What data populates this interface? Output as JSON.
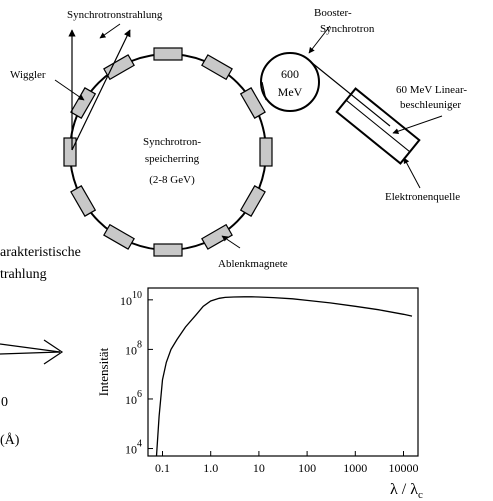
{
  "labels": {
    "synchrotronstrahlung": "Synchrotronstrahlung",
    "wiggler": "Wiggler",
    "booster_line1": "Booster-",
    "booster_line2": "Synchrotron",
    "booster_energy_line1": "600",
    "booster_energy_line2": "MeV",
    "linac_line1": "60 MeV Linear-",
    "linac_line2": "beschleuniger",
    "ring_line1": "Synchrotron-",
    "ring_line2": "speicherring",
    "ring_line3": "(2-8 GeV)",
    "elektronenquelle": "Elektronenquelle",
    "ablenkmagnete": "Ablenkmagnete",
    "charakteristische_line1": "arakteristische",
    "charakteristische_line2": "trahlung",
    "left_number": "0",
    "left_unit": "(Å)"
  },
  "chart_data": {
    "type": "line",
    "title": "",
    "xlabel_main": "λ / λ",
    "xlabel_sub": "c",
    "ylabel": "Intensität",
    "x_scale": "log",
    "y_scale": "log",
    "xlim": [
      0.05,
      20000
    ],
    "ylim": [
      5000,
      30000000000
    ],
    "x_ticks": [
      {
        "value": 0.1,
        "label": "0.1"
      },
      {
        "value": 1,
        "label": "1.0"
      },
      {
        "value": 10,
        "label": "10"
      },
      {
        "value": 100,
        "label": "100"
      },
      {
        "value": 1000,
        "label": "1000"
      },
      {
        "value": 10000,
        "label": "10000"
      }
    ],
    "y_ticks": [
      {
        "value": 10000,
        "base": "10",
        "exp": "4"
      },
      {
        "value": 1000000,
        "base": "10",
        "exp": "6"
      },
      {
        "value": 100000000,
        "base": "10",
        "exp": "8"
      },
      {
        "value": 10000000000,
        "base": "10",
        "exp": "10"
      }
    ],
    "grid": false,
    "series": [
      {
        "x": [
          0.075,
          0.085,
          0.1,
          0.12,
          0.15,
          0.2,
          0.3,
          0.5,
          0.7,
          1.0,
          1.5,
          2,
          3,
          5,
          7,
          10,
          20,
          50,
          100,
          300,
          1000,
          3000,
          10000,
          15000
        ],
        "y": [
          5000,
          200000,
          6000000,
          30000000,
          100000000,
          250000000,
          800000000,
          2500000000,
          5500000000,
          9000000000,
          11500000000,
          12500000000,
          13000000000,
          13300000000,
          13200000000,
          13000000000,
          12300000000,
          11000000000,
          9500000000,
          7500000000,
          5500000000,
          4000000000,
          2600000000,
          2200000000
        ]
      }
    ]
  }
}
